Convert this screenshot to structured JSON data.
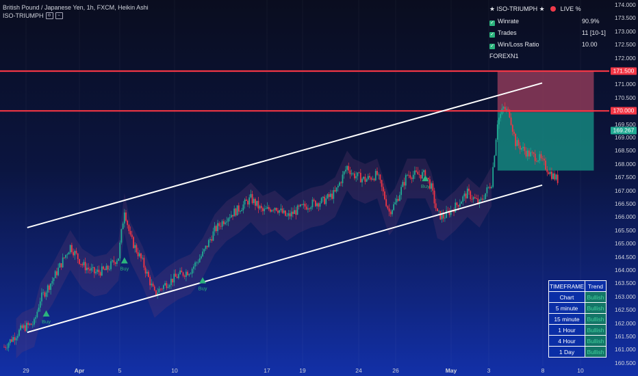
{
  "header": {
    "symbol_line": "British Pound / Japanese Yen, 1h, FXCM, Heikin Ashi",
    "indicator_name": "ISO-TRIUMPH",
    "indicator_icons": "⊡ ⊡"
  },
  "stats_panel": {
    "title": "★ ISO-TRIUMPH ★",
    "live_label": "LIVE %",
    "rows": [
      {
        "label": "Winrate",
        "value": "90.9%"
      },
      {
        "label": "Trades",
        "value": "11 [10-1]"
      },
      {
        "label": "Win/Loss Ratio",
        "value": "10.00"
      }
    ],
    "footer": "FOREXN1"
  },
  "timeframe_table": {
    "col_timeframe": "TIMEFRAME",
    "col_trend": "Trend",
    "rows": [
      {
        "timeframe": "Chart",
        "trend": "Bullish"
      },
      {
        "timeframe": "5 minute",
        "trend": "Bullish"
      },
      {
        "timeframe": "15 minute",
        "trend": "Bullish"
      },
      {
        "timeframe": "1 Hour",
        "trend": "Bullish"
      },
      {
        "timeframe": "4 Hour",
        "trend": "Bullish"
      },
      {
        "timeframe": "1 Day",
        "trend": "Bullish"
      }
    ]
  },
  "price_axis": {
    "ticks": [
      "174.000",
      "173.500",
      "173.000",
      "172.500",
      "172.000",
      "171.000",
      "170.500",
      "170.000",
      "169.500",
      "169.000",
      "168.500",
      "168.000",
      "167.500",
      "167.000",
      "166.500",
      "166.000",
      "165.500",
      "165.000",
      "164.500",
      "164.000",
      "163.500",
      "163.000",
      "162.500",
      "162.000",
      "161.500",
      "161.000",
      "160.500"
    ],
    "tag_upper": "171.500",
    "tag_lower": "170.000",
    "tag_current": "169.267"
  },
  "time_axis": {
    "labels": [
      "29",
      "Apr",
      "5",
      "10",
      "17",
      "19",
      "24",
      "26",
      "May",
      "3",
      "8",
      "10"
    ]
  },
  "buy_label": "Buy",
  "colors": {
    "bull": "#22ab94",
    "bear": "#f23645",
    "resistance": "#f23645",
    "channel": "#ffffff",
    "tp_zone": "#14807a",
    "sl_zone": "#8c3a58",
    "buy": "#2bb37d"
  },
  "chart_data": {
    "type": "candlestick",
    "instrument": "British Pound / Japanese Yen",
    "timeframe": "1h",
    "y_range": [
      160.4,
      174.2
    ],
    "horizontal_levels": [
      171.5,
      170.0
    ],
    "current_price": 169.267,
    "channel": {
      "upper": [
        [
          1,
          165.6
        ],
        [
          100,
          171.05
        ]
      ],
      "lower": [
        [
          1,
          161.65
        ],
        [
          100,
          167.2
        ]
      ]
    },
    "trade_zone": {
      "entry": 169.95,
      "stop": 171.5,
      "target": 167.75,
      "x_start": 82,
      "x_end": 98
    },
    "buy_signals": [
      {
        "x": 7,
        "y": 162.35
      },
      {
        "x": 20,
        "y": 164.35
      },
      {
        "x": 33,
        "y": 163.6
      },
      {
        "x": 70,
        "y": 167.45
      }
    ],
    "price_path": [
      [
        0,
        161.1
      ],
      [
        3,
        161.8
      ],
      [
        5,
        162.0
      ],
      [
        6,
        162.9
      ],
      [
        8,
        163.6
      ],
      [
        11,
        164.9
      ],
      [
        13,
        164.2
      ],
      [
        15,
        163.9
      ],
      [
        17,
        164.0
      ],
      [
        19,
        164.5
      ],
      [
        20,
        166.3
      ],
      [
        21,
        165.2
      ],
      [
        23,
        164.3
      ],
      [
        25,
        163.1
      ],
      [
        27,
        163.5
      ],
      [
        29,
        163.8
      ],
      [
        31,
        164.0
      ],
      [
        33,
        164.6
      ],
      [
        35,
        165.5
      ],
      [
        37,
        166.0
      ],
      [
        39,
        166.3
      ],
      [
        41,
        166.7
      ],
      [
        43,
        166.2
      ],
      [
        45,
        166.4
      ],
      [
        47,
        166.0
      ],
      [
        49,
        166.3
      ],
      [
        51,
        166.5
      ],
      [
        53,
        166.6
      ],
      [
        55,
        166.9
      ],
      [
        57,
        167.9
      ],
      [
        58,
        167.6
      ],
      [
        60,
        167.4
      ],
      [
        62,
        167.6
      ],
      [
        64,
        166.2
      ],
      [
        65,
        166.5
      ],
      [
        67,
        167.6
      ],
      [
        70,
        167.6
      ],
      [
        71,
        167.1
      ],
      [
        72,
        166.1
      ],
      [
        73,
        166.0
      ],
      [
        75,
        166.4
      ],
      [
        77,
        166.9
      ],
      [
        79,
        166.5
      ],
      [
        81,
        167.3
      ],
      [
        82,
        169.6
      ],
      [
        83,
        170.1
      ],
      [
        84,
        169.9
      ],
      [
        85,
        168.8
      ],
      [
        87,
        168.4
      ],
      [
        89,
        168.2
      ],
      [
        91,
        167.6
      ],
      [
        92,
        167.4
      ]
    ]
  }
}
